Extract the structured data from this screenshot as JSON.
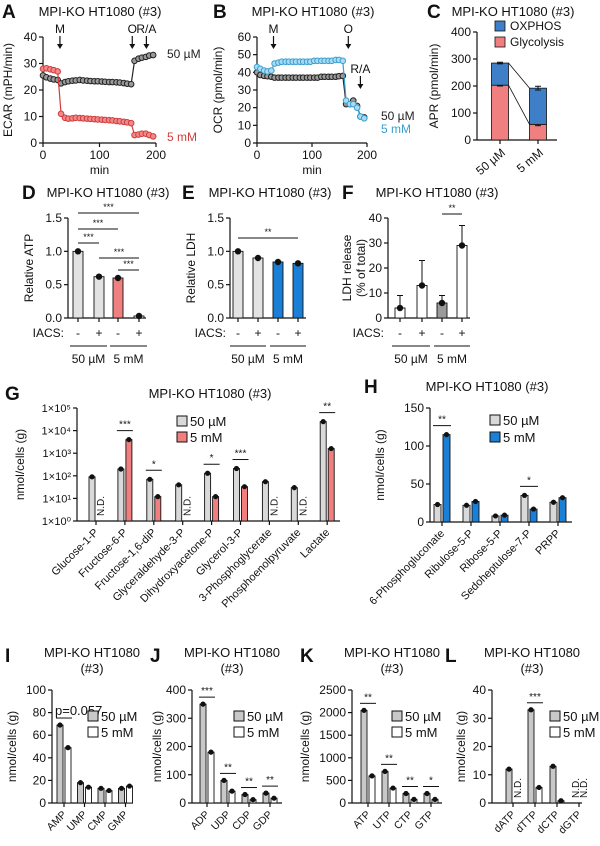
{
  "chart_data": [
    {
      "panel": "A",
      "type": "line",
      "title": "MPI-KO HT1080 (#3)",
      "xlabel": "min",
      "ylabel": "ECAR (mPH/min)",
      "xlim": [
        0,
        200
      ],
      "ylim": [
        0,
        40
      ],
      "xticks": [
        0,
        100,
        200
      ],
      "xtick_labels": [
        "0",
        "100",
        "200"
      ],
      "yticks": [
        0,
        10,
        20,
        30,
        40
      ],
      "ytick_labels": [
        "0",
        "10",
        "20",
        "30",
        "40"
      ],
      "x": [
        0,
        6,
        13,
        19,
        26,
        32,
        39,
        45,
        52,
        58,
        65,
        71,
        78,
        84,
        91,
        97,
        104,
        110,
        117,
        123,
        130,
        136,
        143,
        149,
        156,
        162,
        169,
        175,
        182,
        188,
        195
      ],
      "series": [
        {
          "name": "50 µM",
          "color": "#222222",
          "fill": "#9a9a9a",
          "values": [
            25.5,
            24.8,
            24.3,
            24,
            23.8,
            22.5,
            23,
            23.3,
            23.5,
            23.6,
            23.8,
            23.6,
            23.5,
            23.4,
            23.3,
            23.3,
            23.2,
            23.1,
            23,
            23,
            22.9,
            22.8,
            22.6,
            22.4,
            22.2,
            31,
            31.8,
            32.2,
            32.5,
            33,
            33.2
          ]
        },
        {
          "name": "5 mM",
          "color": "#d23b3b",
          "fill": "#f08a8a",
          "values": [
            28,
            28.2,
            27.8,
            27.5,
            27,
            11,
            9.5,
            9.2,
            9.3,
            9.5,
            9.4,
            9.3,
            9.2,
            9.1,
            9,
            8.9,
            8.8,
            8.7,
            8.6,
            8.5,
            8.3,
            8.2,
            8,
            7.8,
            7.5,
            3,
            3.2,
            3.5,
            3.5,
            3,
            2.5
          ]
        }
      ],
      "annotations": [
        {
          "label": "M",
          "x": 30
        },
        {
          "label": "O",
          "x": 158
        },
        {
          "label": "R/A",
          "x": 183
        }
      ]
    },
    {
      "panel": "B",
      "type": "line",
      "title": "MPI-KO HT1080 (#3)",
      "xlabel": "min",
      "ylabel": "OCR (pmol/min)",
      "xlim": [
        0,
        200
      ],
      "ylim": [
        0,
        60
      ],
      "xticks": [
        0,
        100,
        200
      ],
      "xtick_labels": [
        "0",
        "100",
        "200"
      ],
      "yticks": [
        0,
        10,
        20,
        30,
        40,
        50,
        60
      ],
      "ytick_labels": [
        "0",
        "10",
        "20",
        "30",
        "40",
        "50",
        "60"
      ],
      "x": [
        0,
        6,
        13,
        19,
        26,
        32,
        39,
        45,
        52,
        58,
        65,
        71,
        78,
        84,
        91,
        97,
        104,
        110,
        117,
        123,
        130,
        136,
        143,
        149,
        156,
        162,
        169,
        175,
        182,
        188,
        195
      ],
      "series": [
        {
          "name": "50 µM",
          "color": "#222222",
          "fill": "#9a9a9a",
          "values": [
            40,
            38.5,
            38,
            37.8,
            37.5,
            37,
            37,
            37,
            37,
            37,
            37,
            37,
            37,
            37,
            37,
            37,
            37,
            37,
            37.5,
            37.5,
            37.5,
            37.5,
            37.5,
            37.8,
            38,
            22,
            22,
            24,
            21,
            15,
            14.5
          ]
        },
        {
          "name": "5 mM",
          "color": "#3a9fd0",
          "fill": "#a9dcf3",
          "values": [
            43,
            42,
            41,
            40.5,
            41,
            45,
            45.5,
            46,
            46,
            46,
            46,
            46,
            46,
            46,
            46,
            46,
            46.5,
            46.5,
            46.5,
            46.5,
            46.5,
            46.5,
            47,
            47,
            46.5,
            24,
            22,
            22,
            20,
            15,
            14
          ]
        }
      ],
      "annotations": [
        {
          "label": "M",
          "x": 30
        },
        {
          "label": "O",
          "x": 166
        },
        {
          "label": "R/A",
          "x": 188
        }
      ]
    },
    {
      "panel": "C",
      "type": "bar",
      "stacked": true,
      "title": "MPI-KO HT1080 (#3)",
      "ylabel": "APR (pmol/min)",
      "ylim": [
        0,
        400
      ],
      "yticks": [
        0,
        100,
        200,
        300,
        400
      ],
      "ytick_labels": [
        "0",
        "100",
        "200",
        "300",
        "400"
      ],
      "categories": [
        "50 µM",
        "5 mM"
      ],
      "series": [
        {
          "name": "Glycolysis",
          "color": "#f08080",
          "values": [
            203,
            58
          ],
          "errors": [
            3,
            5
          ]
        },
        {
          "name": "OXPHOS",
          "color": "#3f7fc8",
          "values": [
            82,
            134
          ],
          "errors": [
            3,
            7
          ]
        }
      ]
    },
    {
      "panel": "D",
      "type": "bar",
      "title": "MPI-KO HT1080 (#3)",
      "ylabel": "Relative ATP",
      "ylim": [
        0,
        1.5
      ],
      "yticks": [
        0,
        0.5,
        1,
        1.5
      ],
      "ytick_labels": [
        "0.0",
        "0.5",
        "1.0",
        "1.5"
      ],
      "iacs_label": "IACS:",
      "iacs": [
        "-",
        "+",
        "-",
        "+"
      ],
      "groups": [
        "50 µM",
        "5 mM"
      ],
      "values": [
        1.0,
        0.62,
        0.6,
        0.03
      ],
      "colors": [
        "#e3e3e3",
        "#e3e3e3",
        "#f08080",
        "#ffffff"
      ],
      "sig": [
        {
          "pair": [
            0,
            3
          ],
          "label": "***"
        },
        {
          "pair": [
            0,
            2
          ],
          "label": "***"
        },
        {
          "pair": [
            0,
            1
          ],
          "label": "***"
        },
        {
          "pair": [
            1,
            3
          ],
          "label": "***"
        },
        {
          "pair": [
            2,
            3
          ],
          "label": "***"
        }
      ]
    },
    {
      "panel": "E",
      "type": "bar",
      "title": "MPI-KO HT1080 (#3)",
      "ylabel": "Relative LDH",
      "ylim": [
        0,
        1.5
      ],
      "yticks": [
        0,
        0.5,
        1,
        1.5
      ],
      "ytick_labels": [
        "0.0",
        "0.5",
        "1.0",
        "1.5"
      ],
      "iacs_label": "IACS:",
      "iacs": [
        "-",
        "+",
        "-",
        "+"
      ],
      "groups": [
        "50 µM",
        "5 mM"
      ],
      "values": [
        1.0,
        0.9,
        0.84,
        0.82
      ],
      "colors": [
        "#e3e3e3",
        "#e3e3e3",
        "#1a7fd6",
        "#1a7fd6"
      ],
      "sig": [
        {
          "pair": [
            0,
            3
          ],
          "label": "**"
        }
      ]
    },
    {
      "panel": "F",
      "type": "bar",
      "title": "MPI-KO HT1080 (#3)",
      "ylabel": "LDH release",
      "ylabel2": "(% of total)",
      "ylim": [
        0,
        40
      ],
      "yticks": [
        0,
        10,
        20,
        30,
        40
      ],
      "ytick_labels": [
        "0",
        "10",
        "20",
        "30",
        "40"
      ],
      "iacs_label": "IACS:",
      "iacs": [
        "-",
        "+",
        "-",
        "+"
      ],
      "groups": [
        "50 µM",
        "5 mM"
      ],
      "values": [
        4,
        13,
        6,
        29
      ],
      "errors": [
        5,
        10,
        3,
        8
      ],
      "colors": [
        "#ffffff",
        "#ffffff",
        "#9a9a9a",
        "#ffffff"
      ],
      "sig": [
        {
          "pair": [
            2,
            3
          ],
          "label": "**"
        }
      ]
    },
    {
      "panel": "G",
      "type": "bar",
      "log": true,
      "title": "MPI-KO HT1080 (#3)",
      "ylabel": "nmol/cells (g)",
      "ylim": [
        1,
        100000
      ],
      "yticks": [
        1,
        10,
        100,
        1000,
        10000,
        100000
      ],
      "ytick_labels": [
        "1×10⁰",
        "1×10¹",
        "1×10²",
        "1×10³",
        "1×10⁴",
        "1×10⁵"
      ],
      "nd_label": "N.D.",
      "categories": [
        "Glucose-1-P",
        "Fructose-6-P",
        "Fructose-1,6-diP",
        "Glyceraldehyde-3-P",
        "Dihydroxyacetone-P",
        "Glycerol-3-P",
        "3-Phosphoglycerate",
        "Phosphoenolpyruvate",
        "Lactate"
      ],
      "series": [
        {
          "name": "50 µM",
          "color": "#d9d9d9",
          "values": [
            90,
            200,
            70,
            40,
            130,
            210,
            55,
            30,
            25000
          ]
        },
        {
          "name": "5 mM",
          "color": "#f08080",
          "values": [
            null,
            4000,
            12,
            null,
            12,
            33,
            null,
            null,
            1600
          ]
        }
      ],
      "sig": [
        {
          "category": "Fructose-6-P",
          "label": "***"
        },
        {
          "category": "Fructose-1,6-diP",
          "label": "*"
        },
        {
          "category": "Dihydroxyacetone-P",
          "label": "*"
        },
        {
          "category": "Glycerol-3-P",
          "label": "***"
        },
        {
          "category": "Lactate",
          "label": "**"
        }
      ]
    },
    {
      "panel": "H",
      "type": "bar",
      "title": "MPI-KO HT1080 (#3)",
      "ylabel": "nmol/cells (g)",
      "ylim": [
        0,
        150
      ],
      "yticks": [
        0,
        50,
        100,
        150
      ],
      "ytick_labels": [
        "0",
        "50",
        "100",
        "150"
      ],
      "categories": [
        "6-Phosphogluconate",
        "Ribulose-5-P",
        "Ribose-5-P",
        "Sedoheptulose-7-P",
        "PRPP"
      ],
      "series": [
        {
          "name": "50 µM",
          "color": "#d9d9d9",
          "values": [
            23,
            22,
            8,
            35,
            26
          ]
        },
        {
          "name": "5 mM",
          "color": "#1a7fd6",
          "values": [
            115,
            27,
            9,
            17,
            32
          ]
        }
      ],
      "sig": [
        {
          "category": "6-Phosphogluconate",
          "label": "**"
        },
        {
          "category": "Sedoheptulose-7-P",
          "label": "*"
        }
      ]
    },
    {
      "panel": "I",
      "type": "bar",
      "title": "MPI-KO HT1080",
      "title2": "(#3)",
      "ylabel": "nmol/cells (g)",
      "ylim": [
        0,
        100
      ],
      "yticks": [
        0,
        20,
        40,
        60,
        80,
        100
      ],
      "ytick_labels": [
        "0",
        "20",
        "40",
        "60",
        "80",
        "100"
      ],
      "categories": [
        "AMP",
        "UMP",
        "CMP",
        "GMP"
      ],
      "series": [
        {
          "name": "50 µM",
          "color": "#c8c8c8",
          "values": [
            69,
            18,
            13,
            13
          ]
        },
        {
          "name": "5 mM",
          "color": "#ffffff",
          "values": [
            49,
            14,
            11,
            15
          ]
        }
      ],
      "sig": [
        {
          "category": "AMP",
          "label": "p=0.057"
        }
      ]
    },
    {
      "panel": "J",
      "type": "bar",
      "title": "MPI-KO HT1080",
      "title2": "(#3)",
      "ylabel": "nmol/cells (g)",
      "ylim": [
        0,
        400
      ],
      "yticks": [
        0,
        100,
        200,
        300,
        400
      ],
      "ytick_labels": [
        "0",
        "100",
        "200",
        "300",
        "400"
      ],
      "categories": [
        "ADP",
        "UDP",
        "CDP",
        "GDP"
      ],
      "series": [
        {
          "name": "50 µM",
          "color": "#c8c8c8",
          "values": [
            350,
            80,
            30,
            35
          ]
        },
        {
          "name": "5 mM",
          "color": "#ffffff",
          "values": [
            180,
            42,
            12,
            17
          ]
        }
      ],
      "sig": [
        {
          "category": "ADP",
          "label": "***"
        },
        {
          "category": "UDP",
          "label": "**"
        },
        {
          "category": "CDP",
          "label": "**"
        },
        {
          "category": "GDP",
          "label": "**"
        }
      ]
    },
    {
      "panel": "K",
      "type": "bar",
      "title": "MPI-KO HT1080",
      "title2": "(#3)",
      "ylabel": "nmol/cells (g)",
      "ylim": [
        0,
        2500
      ],
      "yticks": [
        0,
        500,
        1000,
        1500,
        2000,
        2500
      ],
      "ytick_labels": [
        "0",
        "500",
        "1000",
        "1500",
        "2000",
        "2500"
      ],
      "categories": [
        "ATP",
        "UTP",
        "CTP",
        "GTP"
      ],
      "series": [
        {
          "name": "50 µM",
          "color": "#c8c8c8",
          "values": [
            2050,
            700,
            210,
            210
          ]
        },
        {
          "name": "5 mM",
          "color": "#ffffff",
          "values": [
            600,
            330,
            80,
            80
          ]
        }
      ],
      "sig": [
        {
          "category": "ATP",
          "label": "**"
        },
        {
          "category": "UTP",
          "label": "**"
        },
        {
          "category": "CTP",
          "label": "**"
        },
        {
          "category": "GTP",
          "label": "*"
        }
      ]
    },
    {
      "panel": "L",
      "type": "bar",
      "title": "MPI-KO HT1080",
      "title2": "(#3)",
      "ylabel": "nmol/cells (g)",
      "ylim": [
        0,
        40
      ],
      "yticks": [
        0,
        10,
        20,
        30,
        40
      ],
      "ytick_labels": [
        "0",
        "10",
        "20",
        "30",
        "40"
      ],
      "nd_label": "N.D.",
      "categories": [
        "dATP",
        "dTTP",
        "dCTP",
        "dGTP"
      ],
      "series": [
        {
          "name": "50 µM",
          "color": "#c8c8c8",
          "values": [
            12,
            33,
            13,
            null
          ]
        },
        {
          "name": "5 mM",
          "color": "#ffffff",
          "values": [
            null,
            5.5,
            0.8,
            null
          ]
        }
      ],
      "sig": [
        {
          "category": "dTTP",
          "label": "***"
        }
      ]
    }
  ]
}
